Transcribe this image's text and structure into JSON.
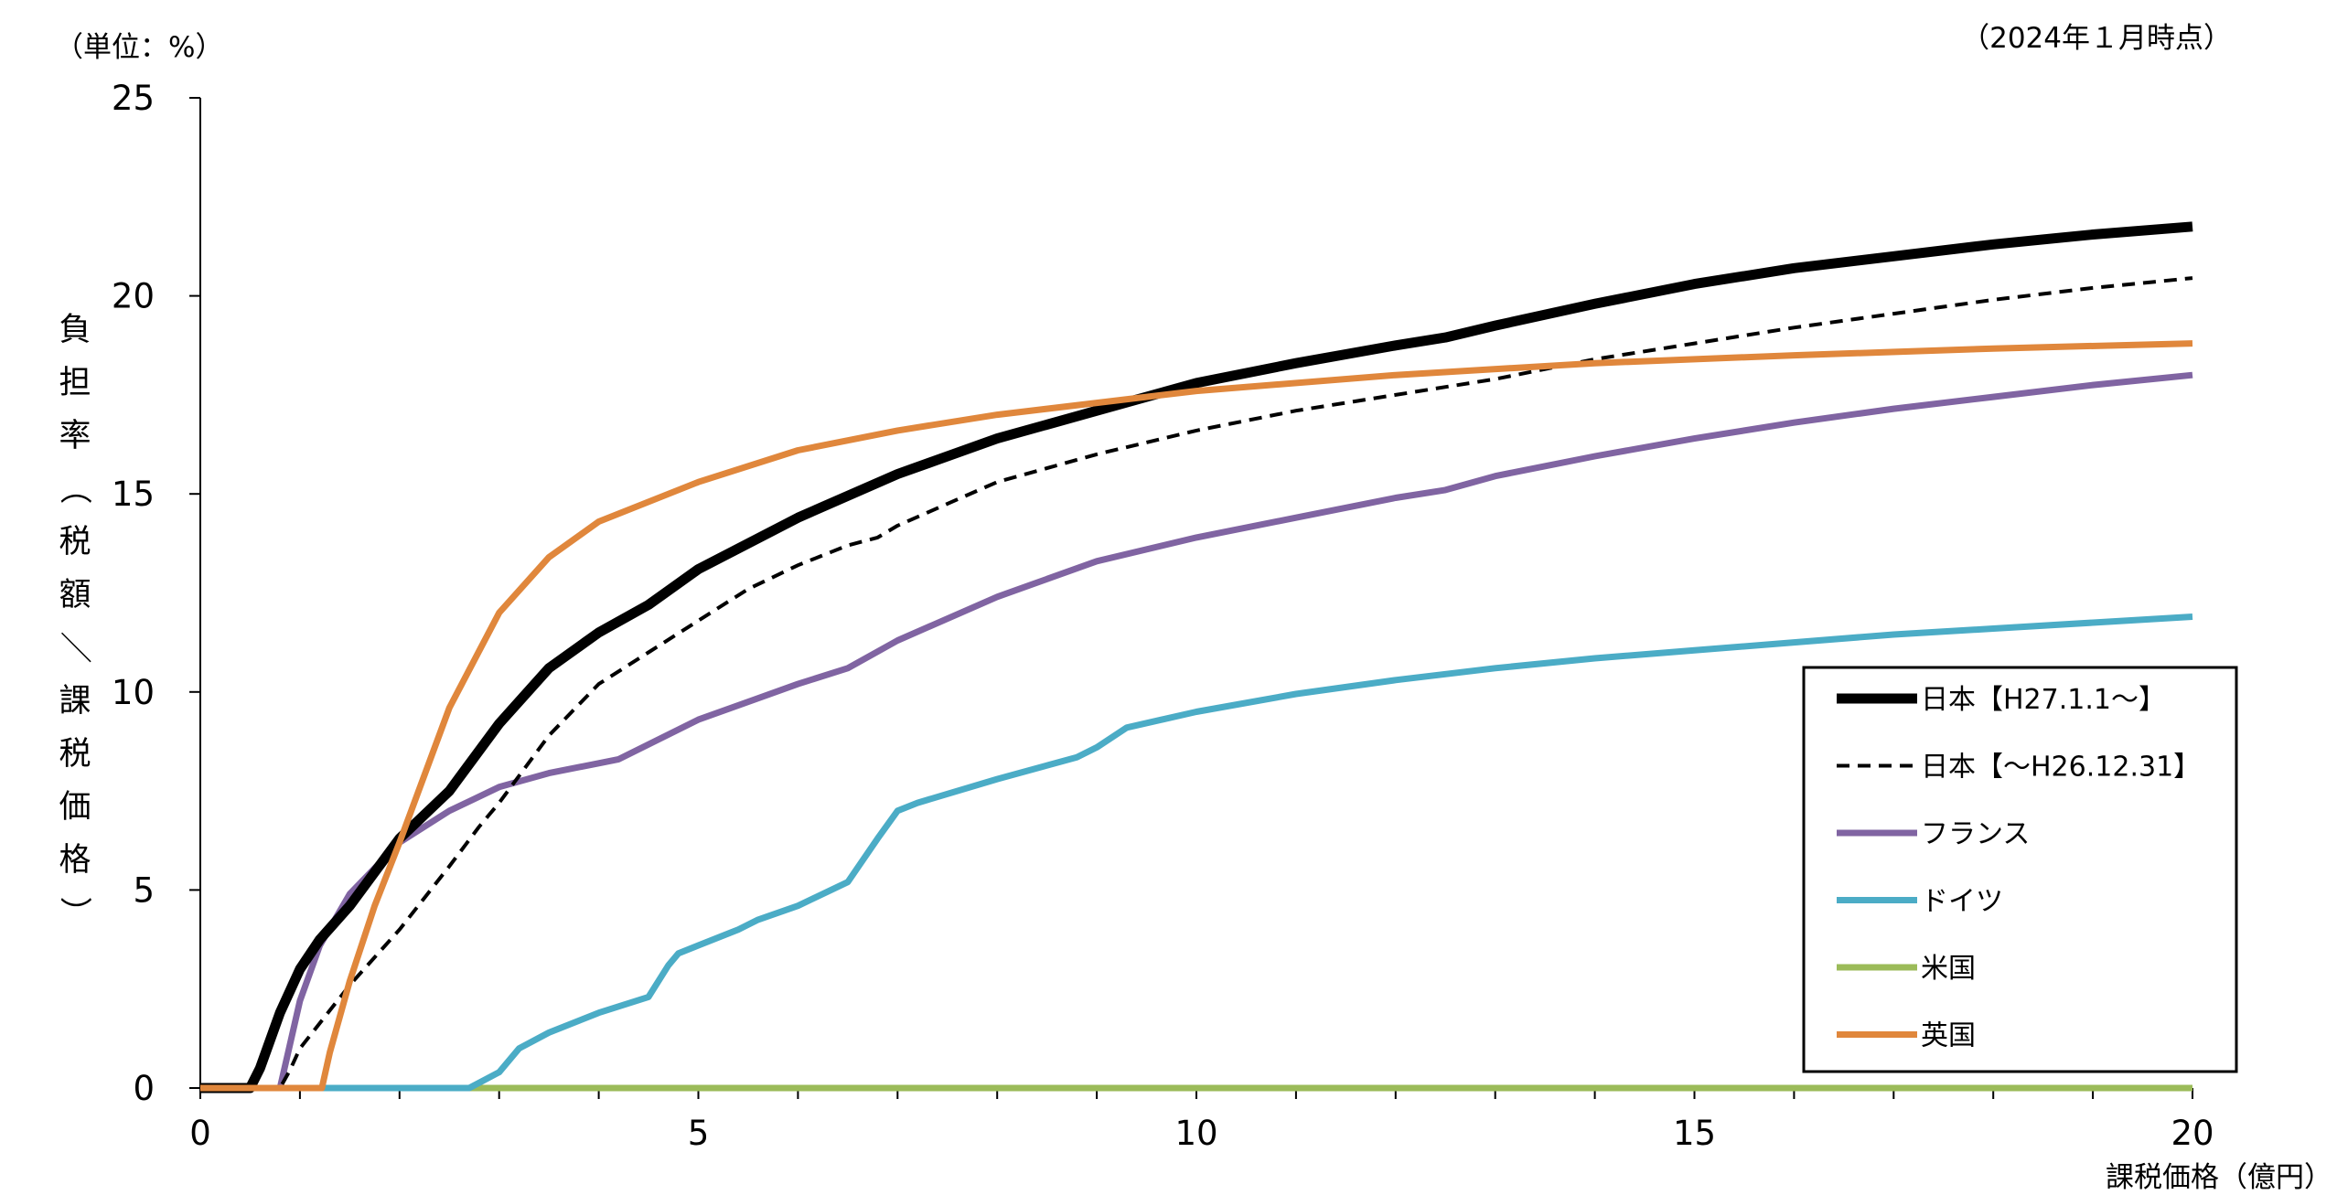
{
  "chart_data": {
    "type": "line",
    "unit_note": "（単位：%）",
    "date_note": "（2024年１月時点）",
    "ylabel": "負担率（税額／課税価格）",
    "xlabel": "課税価格（億円）",
    "xlim": [
      0,
      20
    ],
    "ylim": [
      0,
      25
    ],
    "x_ticks": [
      0,
      5,
      10,
      15,
      20
    ],
    "x_minor_step": 1,
    "y_ticks": [
      0,
      5,
      10,
      15,
      20,
      25
    ],
    "grid": false,
    "legend_position": "bottom-right",
    "series": [
      {
        "name": "日本【H27.1.1～】",
        "color": "#000000",
        "style": "solid-thick",
        "x": [
          0,
          0.5,
          0.6,
          0.8,
          1.0,
          1.2,
          1.5,
          2.0,
          2.5,
          2.5,
          3.0,
          3.5,
          4.0,
          4.5,
          5.0,
          6.0,
          7.0,
          8.0,
          9.0,
          10.0,
          11.0,
          12.0,
          12.5,
          13.0,
          14.0,
          15.0,
          16.0,
          17.0,
          18.0,
          19.0,
          20.0
        ],
        "y": [
          0,
          0,
          0.5,
          1.9,
          3.0,
          3.75,
          4.6,
          6.3,
          7.5,
          7.5,
          9.2,
          10.6,
          11.5,
          12.2,
          13.1,
          14.4,
          15.5,
          16.4,
          17.1,
          17.8,
          18.3,
          18.75,
          18.95,
          19.25,
          19.8,
          20.3,
          20.7,
          21.0,
          21.3,
          21.55,
          21.75
        ]
      },
      {
        "name": "日本【～H26.12.31】",
        "color": "#000000",
        "style": "dashed",
        "x": [
          0,
          0.8,
          0.9,
          1.0,
          1.5,
          2.0,
          2.5,
          2.8,
          3.0,
          3.5,
          4.0,
          4.5,
          5.0,
          5.5,
          6.0,
          6.5,
          6.8,
          7.0,
          8.0,
          9.0,
          10.0,
          11.0,
          12.0,
          13.0,
          14.0,
          15.0,
          16.0,
          17.0,
          18.0,
          19.0,
          20.0
        ],
        "y": [
          0,
          0,
          0.45,
          1.0,
          2.6,
          4.0,
          5.6,
          6.6,
          7.2,
          8.9,
          10.2,
          11.0,
          11.8,
          12.6,
          13.2,
          13.7,
          13.9,
          14.2,
          15.3,
          16.0,
          16.6,
          17.1,
          17.5,
          17.9,
          18.4,
          18.8,
          19.2,
          19.55,
          19.9,
          20.2,
          20.45
        ]
      },
      {
        "name": "フランス",
        "color": "#8064a2",
        "style": "solid",
        "x": [
          0,
          0.67,
          0.8,
          1.0,
          1.2,
          1.5,
          2.0,
          2.5,
          3.0,
          3.5,
          4.0,
          4.2,
          5.0,
          6.0,
          6.5,
          7.0,
          8.0,
          9.0,
          10.0,
          11.0,
          12.0,
          12.5,
          13.0,
          14.0,
          15.0,
          16.0,
          17.0,
          18.0,
          19.0,
          20.0
        ],
        "y": [
          0,
          0,
          0.0,
          2.2,
          3.6,
          4.9,
          6.2,
          7.0,
          7.6,
          7.95,
          8.2,
          8.3,
          9.3,
          10.2,
          10.6,
          11.3,
          12.4,
          13.3,
          13.9,
          14.4,
          14.9,
          15.1,
          15.45,
          15.95,
          16.4,
          16.8,
          17.15,
          17.45,
          17.75,
          18.0
        ]
      },
      {
        "name": "ドイツ",
        "color": "#4bacc6",
        "style": "solid",
        "x": [
          0,
          2.7,
          3.0,
          3.2,
          3.5,
          4.0,
          4.5,
          4.7,
          4.8,
          5.0,
          5.4,
          5.6,
          6.0,
          6.5,
          6.8,
          7.0,
          7.2,
          8.0,
          8.8,
          9.0,
          9.3,
          10.0,
          11.0,
          12.0,
          13.0,
          14.0,
          15.0,
          16.0,
          17.0,
          18.0,
          19.0,
          20.0
        ],
        "y": [
          0,
          0,
          0.4,
          1.0,
          1.4,
          1.9,
          2.3,
          3.1,
          3.4,
          3.6,
          4.0,
          4.25,
          4.6,
          5.2,
          6.3,
          7.0,
          7.2,
          7.8,
          8.35,
          8.6,
          9.1,
          9.5,
          9.95,
          10.3,
          10.6,
          10.85,
          11.05,
          11.25,
          11.45,
          11.6,
          11.75,
          11.9
        ]
      },
      {
        "name": "米国",
        "color": "#9bbb59",
        "style": "solid",
        "x": [
          0,
          20
        ],
        "y": [
          0,
          0
        ]
      },
      {
        "name": "英国",
        "color": "#e0873c",
        "style": "solid",
        "x": [
          0,
          1.22,
          1.3,
          1.5,
          1.75,
          2.0,
          2.5,
          3.0,
          3.5,
          4.0,
          5.0,
          6.0,
          7.0,
          8.0,
          9.0,
          10.0,
          12.0,
          14.0,
          16.0,
          18.0,
          20.0
        ],
        "y": [
          0,
          0,
          0.9,
          2.7,
          4.6,
          6.2,
          9.6,
          12.0,
          13.4,
          14.3,
          15.3,
          16.1,
          16.6,
          17.0,
          17.3,
          17.6,
          18.0,
          18.3,
          18.5,
          18.67,
          18.8
        ]
      }
    ]
  }
}
